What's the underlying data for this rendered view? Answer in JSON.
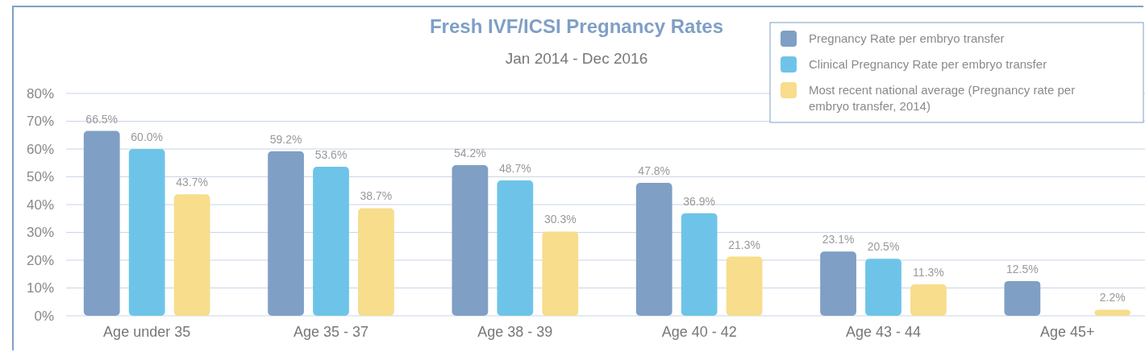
{
  "chart_data": {
    "type": "bar",
    "title": "Fresh IVF/ICSI Pregnancy Rates",
    "subtitle": "Jan 2014 - Dec 2016",
    "categories": [
      "Age under 35",
      "Age 35 - 37",
      "Age 38 - 39",
      "Age 40 - 42",
      "Age 43 - 44",
      "Age 45+"
    ],
    "series": [
      {
        "name": "Pregnancy Rate per embryo transfer",
        "color": "#7f9fc5",
        "values": [
          66.5,
          59.2,
          54.2,
          47.8,
          23.1,
          12.5
        ],
        "value_labels": [
          "66.5%",
          "59.2%",
          "54.2%",
          "47.8%",
          "23.1%",
          "12.5%"
        ]
      },
      {
        "name": "Clinical Pregnancy Rate per embryo transfer",
        "color": "#6ec4e8",
        "values": [
          60.0,
          53.6,
          48.7,
          36.9,
          20.5,
          null
        ],
        "value_labels": [
          "60.0%",
          "53.6%",
          "48.7%",
          "36.9%",
          "20.5%",
          null
        ]
      },
      {
        "name": "Most recent national average (Pregnancy rate per embryo transfer, 2014)",
        "color": "#f7dd8c",
        "values": [
          43.7,
          38.7,
          30.3,
          21.3,
          11.3,
          2.2
        ],
        "value_labels": [
          "43.7%",
          "38.7%",
          "30.3%",
          "21.3%",
          "11.3%",
          "2.2%"
        ]
      }
    ],
    "ylim": [
      0,
      80
    ],
    "yticks": [
      {
        "value": 0,
        "label": "0%"
      },
      {
        "value": 10,
        "label": "10%"
      },
      {
        "value": 20,
        "label": "20%"
      },
      {
        "value": 30,
        "label": "30%"
      },
      {
        "value": 40,
        "label": "40%"
      },
      {
        "value": 50,
        "label": "50%"
      },
      {
        "value": 60,
        "label": "60%"
      },
      {
        "value": 70,
        "label": "70%"
      },
      {
        "value": 80,
        "label": "80%"
      }
    ],
    "grid": "y",
    "legend": "top right"
  }
}
